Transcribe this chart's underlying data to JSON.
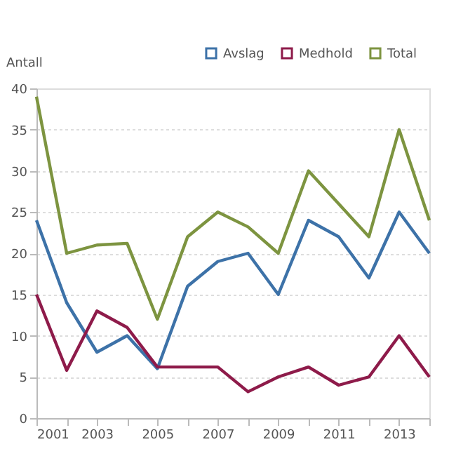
{
  "chart_data": {
    "type": "line",
    "ylabel": "Antall",
    "x": [
      2001,
      2002,
      2003,
      2004,
      2005,
      2006,
      2007,
      2008,
      2009,
      2010,
      2011,
      2012,
      2013,
      2014
    ],
    "series": [
      {
        "name": "Avslag",
        "color": "#3d72a8",
        "values": [
          24,
          14,
          8,
          10,
          6,
          16,
          19,
          20,
          15,
          24,
          22,
          17,
          25,
          20
        ]
      },
      {
        "name": "Medhold",
        "color": "#8e1b4a",
        "values": [
          15,
          5.8,
          13,
          11,
          6.2,
          6.2,
          6.2,
          3.2,
          5,
          6.2,
          4,
          5,
          10,
          5
        ]
      },
      {
        "name": "Total",
        "color": "#7d9440",
        "values": [
          39,
          20,
          21,
          21.2,
          12,
          22,
          25,
          23.2,
          20,
          30,
          26,
          22,
          35,
          24
        ]
      }
    ],
    "xlim": [
      2001,
      2014
    ],
    "xticks": [
      2001,
      {
        "value": 2002,
        "label": null
      },
      2003,
      {
        "value": 2004,
        "label": null
      },
      2005,
      {
        "value": 2006,
        "label": null
      },
      2007,
      {
        "value": 2008,
        "label": null
      },
      2009,
      {
        "value": 2010,
        "label": null
      },
      2011,
      {
        "value": 2012,
        "label": null
      },
      2013,
      {
        "value": 2014,
        "label": null
      }
    ],
    "ylim": [
      0,
      40
    ],
    "yticks": [
      0,
      5,
      10,
      15,
      20,
      25,
      30,
      35,
      40
    ],
    "grid": "y",
    "legend": "top right",
    "marker": "none",
    "line_style": "solid"
  }
}
